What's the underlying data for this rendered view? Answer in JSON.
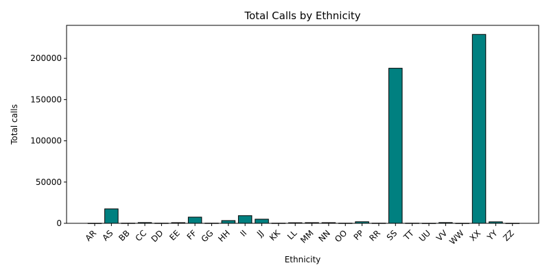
{
  "chart_data": {
    "type": "bar",
    "title": "Total Calls by Ethnicity",
    "xlabel": "Ethnicity",
    "ylabel": "Total calls",
    "categories": [
      "AR",
      "AS",
      "BB",
      "CC",
      "DD",
      "EE",
      "FF",
      "GG",
      "HH",
      "II",
      "JJ",
      "KK",
      "LL",
      "MM",
      "NN",
      "OO",
      "PP",
      "RR",
      "SS",
      "TT",
      "UU",
      "VV",
      "WW",
      "XX",
      "YY",
      "ZZ"
    ],
    "values": [
      100,
      17500,
      200,
      900,
      200,
      800,
      7500,
      200,
      3300,
      9300,
      5000,
      200,
      700,
      800,
      800,
      200,
      1900,
      200,
      188000,
      200,
      100,
      900,
      100,
      229000,
      1800,
      100
    ],
    "ylim": [
      0,
      240000
    ],
    "yticks": [
      0,
      50000,
      100000,
      150000,
      200000
    ],
    "bar_color": "#008080",
    "grid": false,
    "legend": "none"
  }
}
